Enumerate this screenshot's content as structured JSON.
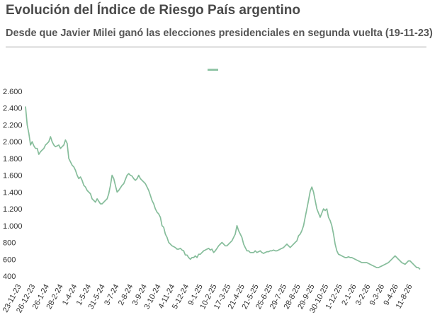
{
  "header": {
    "title": "Evolución del Índice de Riesgo País argentino",
    "subtitle": "Desde que Javier Milei ganó las elecciones presidenciales en segunda vuelta (19-11-23)"
  },
  "colors": {
    "line": "#86bd9b",
    "legend": "#93c6a8",
    "text": "#333333"
  },
  "chart_data": {
    "type": "line",
    "title": "Evolución del Índice de Riesgo País argentino",
    "subtitle": "Desde que Javier Milei ganó las elecciones presidenciales en segunda vuelta (19-11-23)",
    "xlabel": "",
    "ylabel": "",
    "ylim": [
      400,
      2600
    ],
    "yticks": [
      400,
      600,
      800,
      1000,
      1200,
      1400,
      1600,
      1800,
      2000,
      2200,
      2400,
      2600
    ],
    "ytick_labels": [
      "400",
      "600",
      "800",
      "1.000",
      "1.200",
      "1.400",
      "1.600",
      "1.800",
      "2.000",
      "2.200",
      "2.400",
      "2.600"
    ],
    "grid": false,
    "legend": "top-center",
    "xtick_labels": [
      "23-11-23",
      "26-12-23",
      "26-1-24",
      "28-2-24",
      "1-4-24",
      "1-5-24",
      "31-5-24",
      "3-7-24",
      "2-8-24",
      "3-9-24",
      "3-10-24",
      "4-11-24",
      "5-12-24",
      "9-1-25",
      "10-2-25",
      "17-3-25",
      "21-4-25",
      "21-5-25",
      "25-6-25",
      "29-7-25",
      "28-8-25",
      "29-9-25",
      "30-10-25",
      "1-12-25",
      "2-1-26",
      "3-2-26",
      "9-3-26",
      "9-4-26",
      "11-8-26"
    ],
    "series": [
      {
        "values": [
          2420,
          2200,
          2100,
          1960,
          2000,
          1950,
          1920,
          1920,
          1850,
          1880,
          1900,
          1920,
          1960,
          1980,
          2000,
          2060,
          2000,
          1960,
          1940,
          1950,
          1960,
          1920,
          1940,
          1960,
          2020,
          1980,
          1800,
          1760,
          1720,
          1700,
          1660,
          1600,
          1560,
          1580,
          1540,
          1480,
          1460,
          1420,
          1400,
          1380,
          1320,
          1300,
          1280,
          1320,
          1290,
          1260,
          1260,
          1280,
          1300,
          1320,
          1380,
          1480,
          1600,
          1560,
          1480,
          1400,
          1420,
          1450,
          1480,
          1500,
          1550,
          1600,
          1620,
          1600,
          1590,
          1560,
          1540,
          1560,
          1600,
          1560,
          1540,
          1520,
          1500,
          1460,
          1420,
          1360,
          1300,
          1260,
          1200,
          1160,
          1140,
          1100,
          1000,
          980,
          900,
          860,
          800,
          780,
          760,
          750,
          740,
          720,
          720,
          730,
          710,
          700,
          650,
          650,
          620,
          600,
          620,
          620,
          640,
          620,
          660,
          660,
          680,
          700,
          710,
          720,
          730,
          710,
          720,
          680,
          700,
          730,
          760,
          780,
          800,
          780,
          760,
          760,
          780,
          800,
          820,
          860,
          900,
          1000,
          940,
          900,
          860,
          780,
          740,
          700,
          700,
          680,
          680,
          680,
          700,
          680,
          690,
          700,
          680,
          670,
          680,
          690,
          690,
          700,
          700,
          710,
          700,
          700,
          710,
          720,
          730,
          740,
          760,
          780,
          760,
          740,
          760,
          780,
          800,
          820,
          880,
          900,
          940,
          1000,
          1100,
          1200,
          1300,
          1410,
          1460,
          1400,
          1300,
          1200,
          1150,
          1100,
          1150,
          1200,
          1180,
          1200,
          1100,
          1060,
          1000,
          900,
          780,
          700,
          660,
          650,
          640,
          630,
          620,
          620,
          630,
          620,
          620,
          610,
          600,
          590,
          580,
          570,
          560,
          560,
          560,
          560,
          550,
          540,
          530,
          520,
          510,
          500,
          500,
          510,
          520,
          530,
          540,
          550,
          560,
          580,
          600,
          620,
          640,
          620,
          600,
          580,
          560,
          550,
          540,
          560,
          580,
          580,
          560,
          540,
          520,
          500,
          500,
          480
        ]
      }
    ]
  }
}
